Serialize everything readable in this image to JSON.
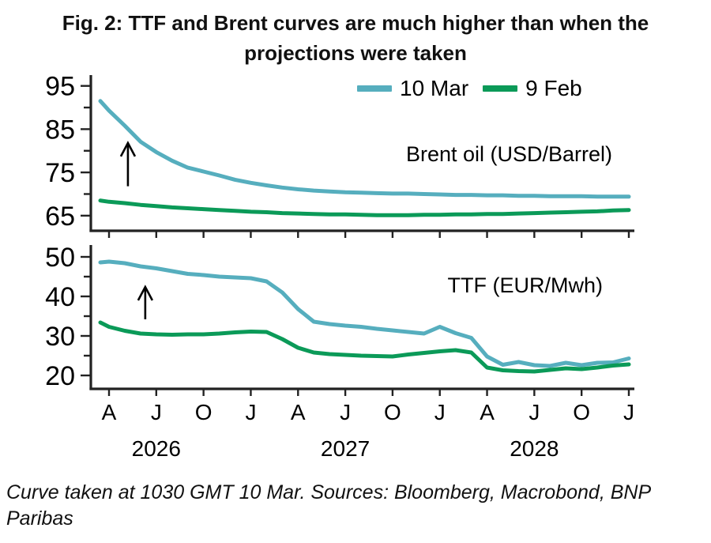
{
  "figure": {
    "title_line1": "Fig. 2: TTF and Brent curves are much higher than when the",
    "title_line2": "projections were taken",
    "footnote_line1": "Curve taken at 1030 GMT 10 Mar. Sources: Bloomberg, Macrobond, BNP",
    "footnote_line2": "Paribas"
  },
  "colors": {
    "mar10": "#56AEBE",
    "feb9": "#0B9A58",
    "axis": "#222222",
    "annotation": "#000000"
  },
  "legend": {
    "items": [
      {
        "label": "10 Mar",
        "series": "mar10"
      },
      {
        "label": "9 Feb",
        "series": "feb9"
      }
    ]
  },
  "x_axis": {
    "start_month": "Mar 2026",
    "end_month": "Jan 2029",
    "tick_labels": [
      "A",
      "J",
      "O",
      "J",
      "A",
      "J",
      "O",
      "J",
      "A",
      "J",
      "O",
      "J"
    ],
    "tick_month_indices": [
      1,
      4,
      7,
      10,
      13,
      16,
      19,
      22,
      25,
      28,
      31,
      34
    ],
    "year_labels": [
      {
        "text": "2026",
        "month_index": 4
      },
      {
        "text": "2027",
        "month_index": 16
      },
      {
        "text": "2028",
        "month_index": 28
      }
    ]
  },
  "chart_data": [
    {
      "type": "line",
      "title": "Brent oil (USD/Barrel)",
      "ylim": [
        61.5,
        97.5
      ],
      "yticks_major": [
        95,
        85,
        75,
        65
      ],
      "yticks_minor": [
        90,
        80,
        70
      ],
      "grid": false,
      "legend_position": "top-right",
      "series": [
        {
          "name": "10 Mar",
          "color": "mar10",
          "values": [
            91.5,
            89.3,
            85.8,
            82.1,
            79.7,
            77.7,
            76.1,
            75.2,
            74.3,
            73.3,
            72.6,
            72.0,
            71.5,
            71.1,
            70.8,
            70.6,
            70.4,
            70.3,
            70.2,
            70.1,
            70.1,
            70.0,
            69.9,
            69.8,
            69.8,
            69.7,
            69.7,
            69.6,
            69.6,
            69.5,
            69.5,
            69.5,
            69.4,
            69.4,
            69.4
          ]
        },
        {
          "name": "9 Feb",
          "color": "feb9",
          "values": [
            68.5,
            68.2,
            67.9,
            67.5,
            67.2,
            66.9,
            66.7,
            66.5,
            66.3,
            66.1,
            65.9,
            65.8,
            65.6,
            65.5,
            65.4,
            65.3,
            65.3,
            65.2,
            65.1,
            65.1,
            65.1,
            65.2,
            65.2,
            65.3,
            65.3,
            65.4,
            65.4,
            65.5,
            65.6,
            65.7,
            65.8,
            65.9,
            66.0,
            66.2,
            66.3
          ]
        }
      ],
      "arrow": {
        "month_index": 2.2,
        "from_value": 71.8,
        "to_value": 81.8
      }
    },
    {
      "type": "line",
      "title": "TTF (EUR/Mwh)",
      "ylim": [
        16.6,
        53.0
      ],
      "yticks_major": [
        50,
        40,
        30,
        20
      ],
      "yticks_minor": [
        45,
        35,
        25
      ],
      "grid": false,
      "series": [
        {
          "name": "10 Mar",
          "color": "mar10",
          "values": [
            48.6,
            48.8,
            48.4,
            47.6,
            47.1,
            46.4,
            45.7,
            45.4,
            45.0,
            44.8,
            44.6,
            43.8,
            41.0,
            36.8,
            33.6,
            33.0,
            32.6,
            32.3,
            31.8,
            31.4,
            31.0,
            30.6,
            32.3,
            30.7,
            29.5,
            24.8,
            22.7,
            23.4,
            22.6,
            22.4,
            23.2,
            22.6,
            23.2,
            23.3,
            24.3
          ]
        },
        {
          "name": "9 Feb",
          "color": "feb9",
          "values": [
            33.4,
            32.3,
            31.3,
            30.6,
            30.4,
            30.3,
            30.4,
            30.4,
            30.6,
            30.9,
            31.1,
            31.0,
            29.2,
            27.0,
            25.8,
            25.4,
            25.2,
            25.0,
            24.9,
            24.8,
            25.3,
            25.7,
            26.1,
            26.4,
            25.8,
            22.0,
            21.3,
            21.1,
            21.0,
            21.4,
            21.8,
            21.6,
            22.0,
            22.5,
            22.8
          ]
        }
      ],
      "arrow": {
        "month_index": 3.3,
        "from_value": 34.2,
        "to_value": 42.4
      }
    }
  ]
}
